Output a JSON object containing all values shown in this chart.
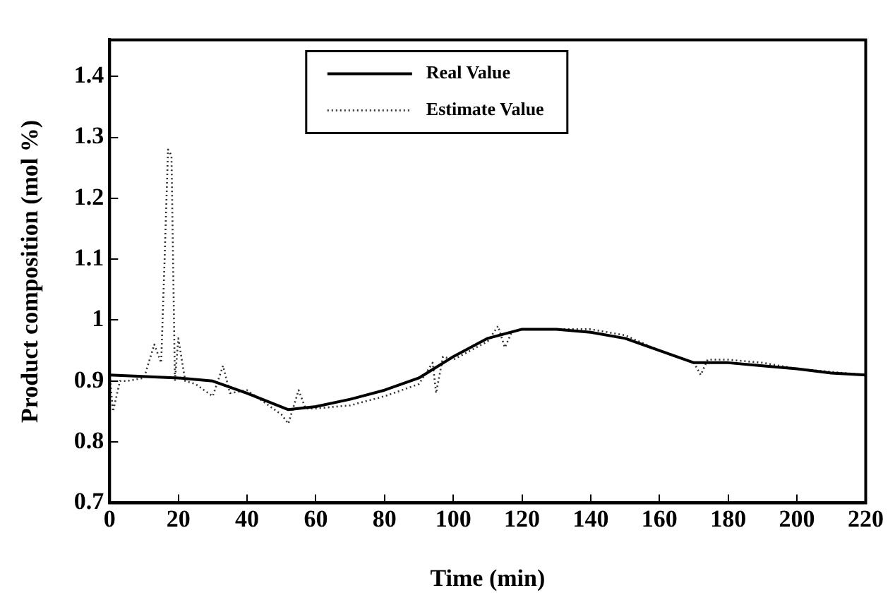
{
  "chart_data": {
    "type": "line",
    "xlabel": "Time (min)",
    "ylabel": "Product composition (mol %)",
    "xlim": [
      0,
      220
    ],
    "xticks": [
      0,
      20,
      40,
      60,
      80,
      100,
      120,
      140,
      160,
      180,
      200,
      220
    ],
    "ylim": [
      0.7,
      1.46
    ],
    "yticks": [
      0.7,
      0.8,
      0.9,
      1,
      1.1,
      1.2,
      1.3,
      1.4
    ],
    "legend": "top",
    "marker": "none",
    "grid": false,
    "series": [
      {
        "name": "Real Value",
        "color": "#000000",
        "line_style": "solid",
        "x": [
          0,
          20,
          30,
          40,
          52,
          60,
          70,
          80,
          90,
          100,
          110,
          120,
          130,
          140,
          150,
          160,
          170,
          180,
          190,
          200,
          210,
          220
        ],
        "values": [
          0.91,
          0.905,
          0.9,
          0.88,
          0.853,
          0.858,
          0.87,
          0.885,
          0.905,
          0.94,
          0.97,
          0.985,
          0.985,
          0.98,
          0.97,
          0.95,
          0.93,
          0.93,
          0.925,
          0.92,
          0.913,
          0.91
        ]
      },
      {
        "name": "Estimate Value",
        "color": "#333333",
        "line_style": "dotted",
        "x": [
          0,
          1,
          3,
          5,
          10,
          13,
          15,
          16,
          17,
          18,
          19,
          20,
          22,
          25,
          30,
          33,
          35,
          40,
          45,
          50,
          52,
          55,
          57,
          60,
          70,
          80,
          90,
          94,
          95,
          97,
          100,
          110,
          113,
          115,
          117,
          120,
          140,
          150,
          160,
          170,
          172,
          174,
          180,
          190,
          200,
          210,
          220
        ],
        "values": [
          0.91,
          0.85,
          0.9,
          0.9,
          0.905,
          0.96,
          0.93,
          1.1,
          1.28,
          1.27,
          0.9,
          0.97,
          0.9,
          0.895,
          0.875,
          0.925,
          0.88,
          0.885,
          0.865,
          0.845,
          0.83,
          0.885,
          0.855,
          0.855,
          0.86,
          0.875,
          0.895,
          0.93,
          0.88,
          0.94,
          0.935,
          0.965,
          0.99,
          0.955,
          0.98,
          0.985,
          0.985,
          0.975,
          0.95,
          0.93,
          0.91,
          0.935,
          0.935,
          0.93,
          0.92,
          0.915,
          0.91
        ]
      }
    ]
  }
}
